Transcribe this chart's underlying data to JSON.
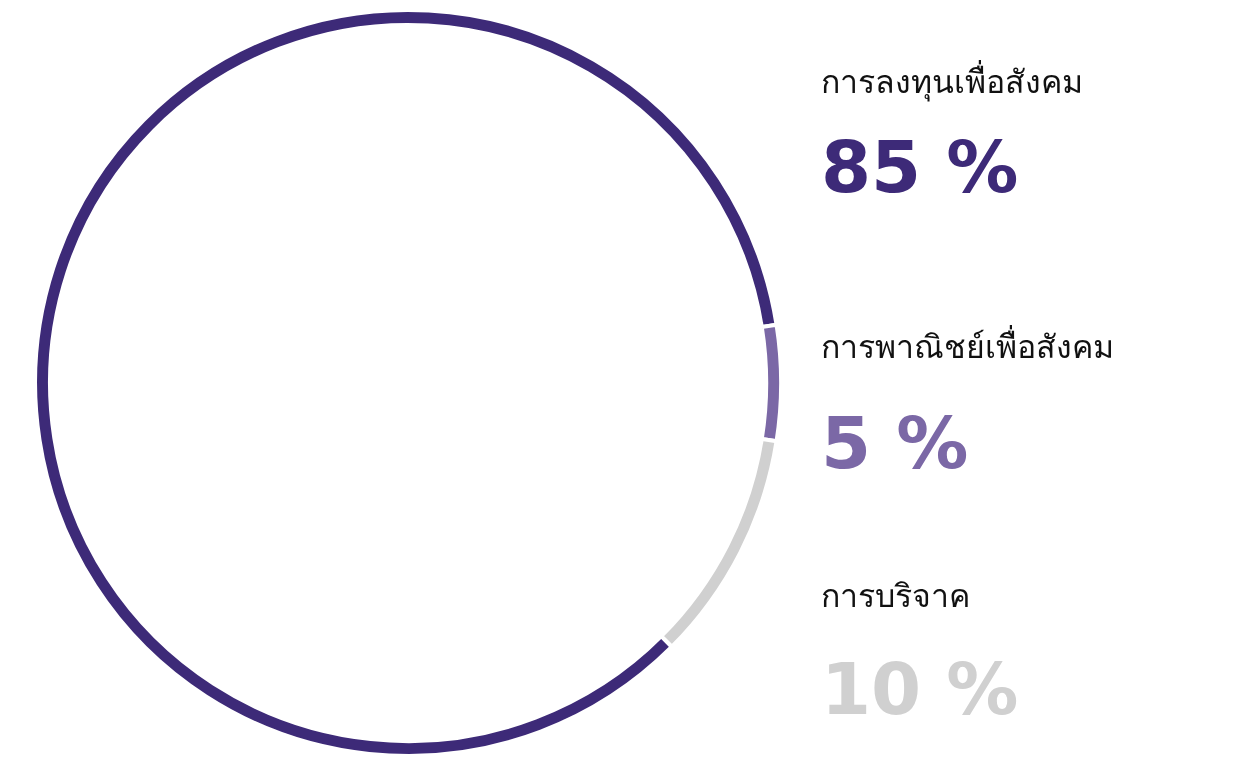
{
  "chart_data": {
    "type": "donut",
    "categories": [
      "การลงทุนเพื่อสังคม",
      "การพาณิชย์เพื่อสังคม",
      "การบริจาค"
    ],
    "values": [
      85,
      5,
      10
    ],
    "colors": [
      "#3d2a78",
      "#7b68a6",
      "#d0d0d0"
    ],
    "value_labels": [
      "85 %",
      "5 %",
      "10 %"
    ]
  }
}
